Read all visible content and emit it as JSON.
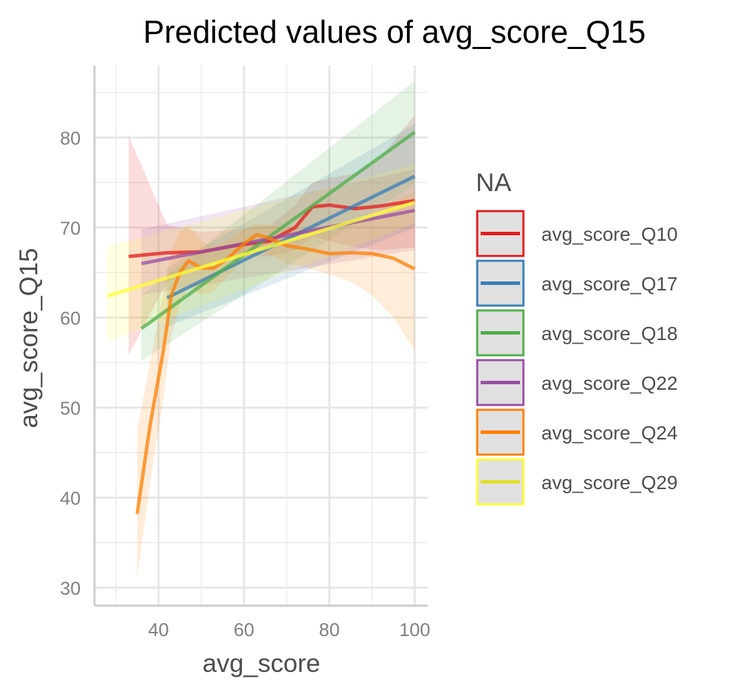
{
  "chart_data": {
    "type": "line",
    "title": "Predicted values of avg_score_Q15",
    "xlabel": "avg_score",
    "ylabel": "avg_score_Q15",
    "xlim": [
      25,
      103
    ],
    "ylim": [
      28,
      88
    ],
    "x_ticks": [
      40,
      60,
      80,
      100
    ],
    "x_tick_labels": [
      "40",
      "60",
      "80",
      "100"
    ],
    "y_ticks": [
      30,
      40,
      50,
      60,
      70,
      80
    ],
    "y_tick_labels": [
      "30",
      "40",
      "50",
      "60",
      "70",
      "80"
    ],
    "grid": true,
    "legend_title": "NA",
    "legend_position": "right",
    "series": [
      {
        "name": "avg_score_Q10",
        "color": "#e41a1c",
        "x": [
          33,
          42,
          50,
          58,
          66,
          72,
          76,
          80,
          86,
          92,
          100
        ],
        "y": [
          66.8,
          67.2,
          67.3,
          68.0,
          68.5,
          70.0,
          72.3,
          72.5,
          72.1,
          72.4,
          73.0
        ],
        "lower": [
          55.8,
          64.0,
          65.5,
          66.8,
          66.8,
          67.5,
          69.0,
          68.5,
          67.8,
          67.5,
          67.8
        ],
        "upper": [
          80.2,
          70.3,
          69.5,
          69.8,
          70.2,
          72.5,
          75.0,
          75.5,
          76.0,
          77.8,
          82.5
        ]
      },
      {
        "name": "avg_score_Q17",
        "color": "#377eb8",
        "x": [
          42,
          100
        ],
        "y": [
          62.2,
          75.7
        ],
        "lower": [
          59.0,
          70.0
        ],
        "upper": [
          65.5,
          81.5
        ]
      },
      {
        "name": "avg_score_Q18",
        "color": "#4daf4a",
        "x": [
          36,
          100
        ],
        "y": [
          58.8,
          80.6
        ],
        "lower": [
          55.2,
          74.8
        ],
        "upper": [
          62.5,
          86.3
        ]
      },
      {
        "name": "avg_score_Q22",
        "color": "#984ea3",
        "x": [
          36,
          100
        ],
        "y": [
          66.0,
          71.9
        ],
        "lower": [
          62.5,
          67.5
        ],
        "upper": [
          69.8,
          76.5
        ]
      },
      {
        "name": "avg_score_Q24",
        "color": "#ff7f00",
        "x": [
          35,
          38,
          41,
          43,
          45,
          47,
          50,
          53,
          56,
          60,
          63,
          66,
          70,
          75,
          80,
          85,
          90,
          95,
          100
        ],
        "y": [
          38.2,
          48.0,
          56.0,
          62.5,
          65.0,
          66.3,
          65.5,
          65.5,
          66.5,
          68.2,
          69.2,
          68.8,
          68.0,
          67.6,
          67.1,
          67.2,
          67.1,
          66.6,
          65.4
        ],
        "lower": [
          31.0,
          41.5,
          50.5,
          58.0,
          61.5,
          63.5,
          62.5,
          63.0,
          64.5,
          66.5,
          67.5,
          67.0,
          66.0,
          65.5,
          64.8,
          64.0,
          62.5,
          60.0,
          56.3
        ],
        "upper": [
          47.5,
          55.0,
          62.5,
          67.5,
          69.5,
          70.3,
          68.5,
          67.8,
          68.5,
          69.8,
          70.5,
          70.3,
          70.0,
          69.8,
          69.5,
          70.3,
          71.5,
          73.0,
          74.0
        ]
      },
      {
        "name": "avg_score_Q29",
        "color": "#ffff33",
        "x": [
          28,
          100
        ],
        "y": [
          62.4,
          72.8
        ],
        "lower": [
          57.3,
          70.5
        ],
        "upper": [
          67.9,
          77.0
        ]
      }
    ]
  }
}
